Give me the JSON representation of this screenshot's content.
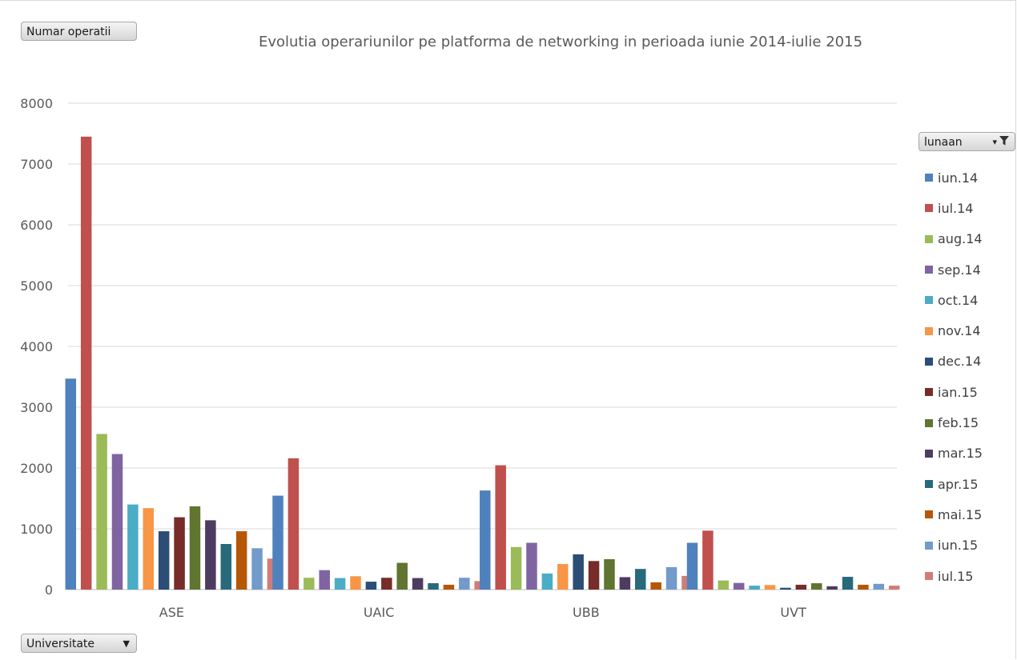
{
  "filters": {
    "measure_label": "Numar operatii",
    "category_label": "Universitate",
    "legend_label": "lunaan"
  },
  "colors": [
    "#4f81bd",
    "#c0504d",
    "#9bbb59",
    "#8064a2",
    "#4bacc6",
    "#f79646",
    "#2c4d75",
    "#772c2a",
    "#5f7530",
    "#4d3b62",
    "#276a7c",
    "#b65708",
    "#729aca",
    "#d07c7a"
  ],
  "chart_data": {
    "type": "bar",
    "title": "Evolutia operariunilor pe platforma de networking in perioada iunie 2014-iulie 2015",
    "xlabel": "",
    "ylabel": "",
    "ylim": [
      0,
      8000
    ],
    "yticks": [
      0,
      1000,
      2000,
      3000,
      4000,
      5000,
      6000,
      7000,
      8000
    ],
    "grid": true,
    "legend_position": "right",
    "categories": [
      "ASE",
      "UAIC",
      "UBB",
      "UVT"
    ],
    "series": [
      {
        "name": "iun.14",
        "values": [
          3470,
          1545,
          1630,
          770
        ]
      },
      {
        "name": "iul.14",
        "values": [
          7450,
          2160,
          2045,
          970
        ]
      },
      {
        "name": "aug.14",
        "values": [
          2560,
          195,
          700,
          150
        ]
      },
      {
        "name": "sep.14",
        "values": [
          2230,
          320,
          770,
          110
        ]
      },
      {
        "name": "oct.14",
        "values": [
          1400,
          190,
          265,
          65
        ]
      },
      {
        "name": "nov.14",
        "values": [
          1340,
          220,
          420,
          75
        ]
      },
      {
        "name": "dec.14",
        "values": [
          960,
          130,
          580,
          30
        ]
      },
      {
        "name": "ian.15",
        "values": [
          1190,
          195,
          470,
          80
        ]
      },
      {
        "name": "feb.15",
        "values": [
          1370,
          440,
          500,
          105
        ]
      },
      {
        "name": "mar.15",
        "values": [
          1140,
          190,
          205,
          55
        ]
      },
      {
        "name": "apr.15",
        "values": [
          750,
          105,
          340,
          210
        ]
      },
      {
        "name": "mai.15",
        "values": [
          960,
          80,
          120,
          80
        ]
      },
      {
        "name": "iun.15",
        "values": [
          680,
          195,
          370,
          95
        ]
      },
      {
        "name": "iul.15",
        "values": [
          510,
          140,
          225,
          65
        ]
      }
    ]
  }
}
